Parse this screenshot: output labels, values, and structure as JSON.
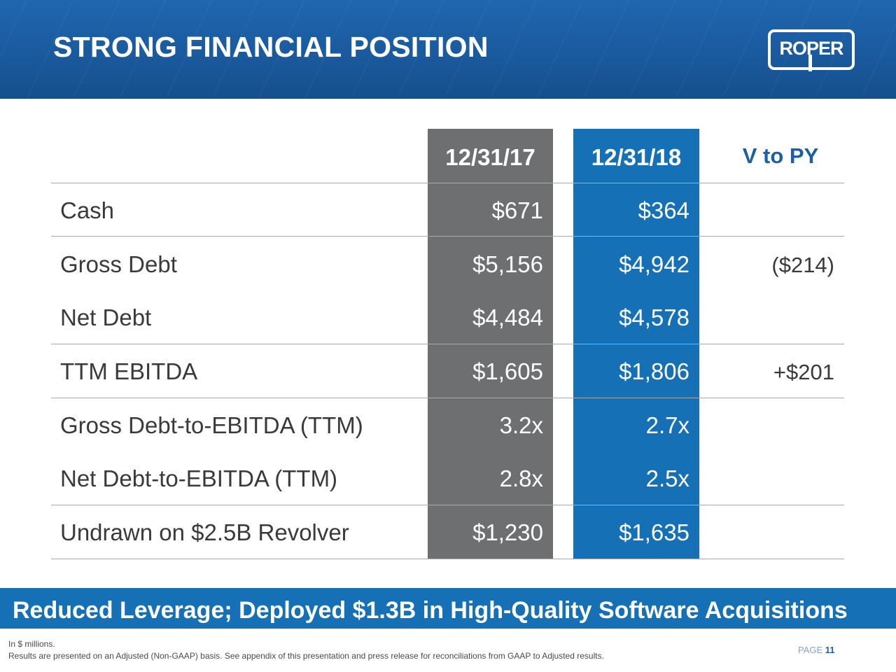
{
  "header": {
    "title": "STRONG FINANCIAL POSITION",
    "logo_text": "ROPER"
  },
  "table": {
    "columns": [
      "12/31/17",
      "12/31/18",
      "V to PY"
    ],
    "rows": [
      {
        "label": "Cash",
        "v17": "$671",
        "v18": "$364",
        "vpy": ""
      },
      {
        "label": "Gross Debt",
        "v17": "$5,156",
        "v18": "$4,942",
        "vpy": "($214)"
      },
      {
        "label": "Net Debt",
        "v17": "$4,484",
        "v18": "$4,578",
        "vpy": ""
      },
      {
        "label": "TTM EBITDA",
        "v17": "$1,605",
        "v18": "$1,806",
        "vpy": "+$201"
      },
      {
        "label": "Gross Debt-to-EBITDA (TTM)",
        "v17": "3.2x",
        "v18": "2.7x",
        "vpy": ""
      },
      {
        "label": "Net Debt-to-EBITDA (TTM)",
        "v17": "2.8x",
        "v18": "2.5x",
        "vpy": ""
      },
      {
        "label": "Undrawn on $2.5B Revolver",
        "v17": "$1,230",
        "v18": "$1,635",
        "vpy": ""
      }
    ]
  },
  "callout": "Reduced Leverage; Deployed $1.3B in High-Quality Software Acquisitions",
  "footnotes": {
    "line1": "In $ millions.",
    "line2": "Results are presented on an Adjusted (Non-GAAP) basis. See appendix of this presentation and press release for reconciliations from GAAP to Adjusted results."
  },
  "page": {
    "label": "PAGE",
    "number": "11"
  },
  "colors": {
    "header_blue": "#1a5a9e",
    "accent_blue": "#1570b5",
    "column_gray": "#6e6f71",
    "text_dark": "#3a3a3c"
  }
}
